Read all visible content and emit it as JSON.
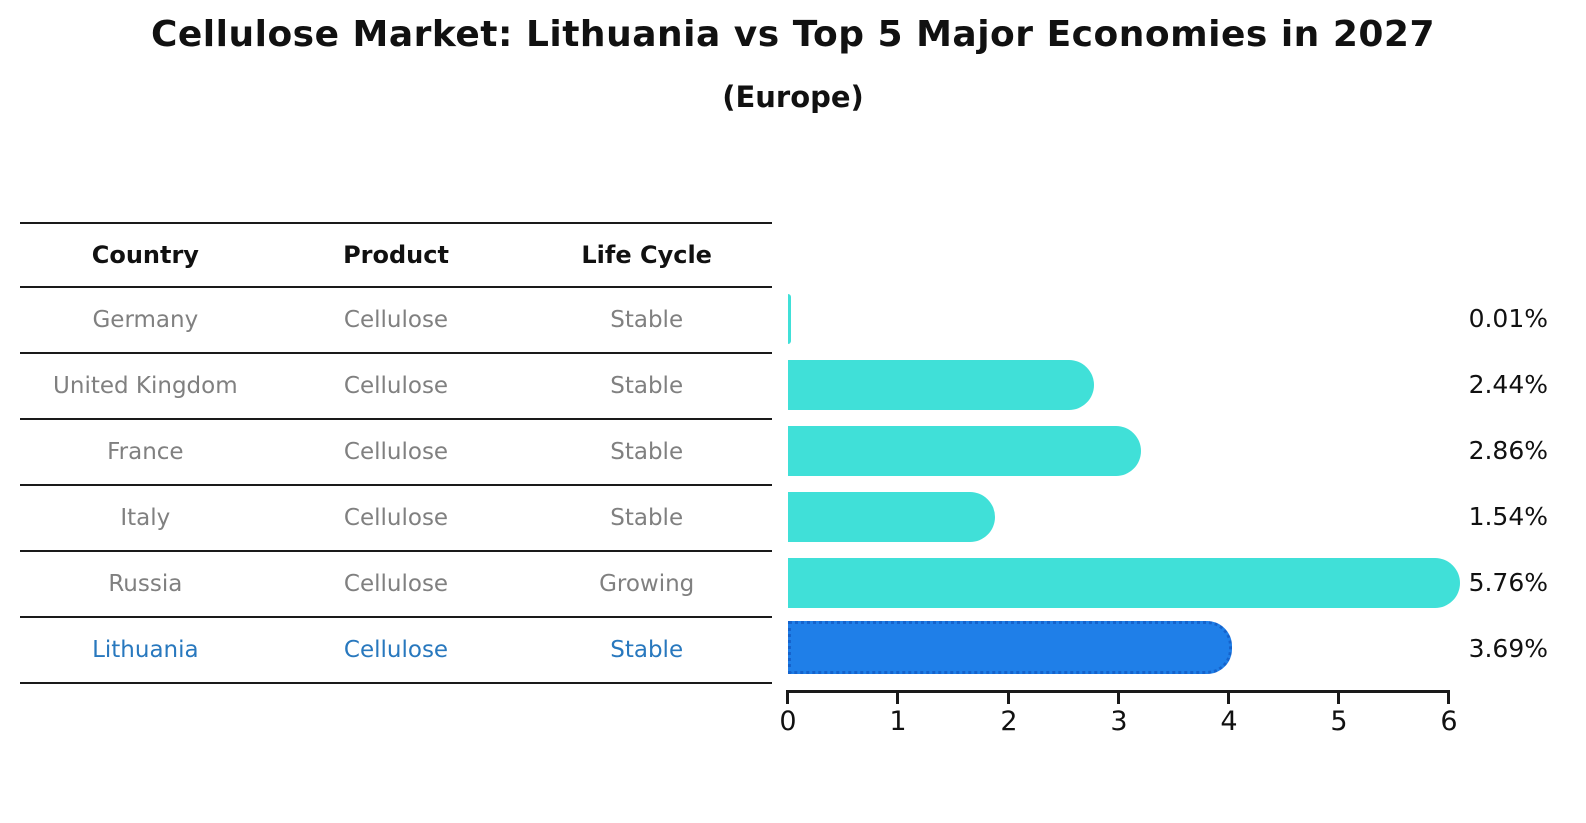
{
  "chart_data": {
    "type": "bar",
    "orientation": "horizontal",
    "title": "Cellulose Market: Lithuania vs Top 5 Major Economies in 2027",
    "subtitle": "(Europe)",
    "table_headers": [
      "Country",
      "Product",
      "Life Cycle"
    ],
    "rows": [
      {
        "country": "Germany",
        "product": "Cellulose",
        "life_cycle": "Stable",
        "value": 0.01,
        "label": "0.01%",
        "highlight": false
      },
      {
        "country": "United Kingdom",
        "product": "Cellulose",
        "life_cycle": "Stable",
        "value": 2.44,
        "label": "2.44%",
        "highlight": false
      },
      {
        "country": "France",
        "product": "Cellulose",
        "life_cycle": "Stable",
        "value": 2.86,
        "label": "2.86%",
        "highlight": false
      },
      {
        "country": "Italy",
        "product": "Cellulose",
        "life_cycle": "Stable",
        "value": 1.54,
        "label": "1.54%",
        "highlight": false
      },
      {
        "country": "Russia",
        "product": "Cellulose",
        "life_cycle": "Growing",
        "value": 5.76,
        "label": "5.76%",
        "highlight": false
      },
      {
        "country": "Lithuania",
        "product": "Cellulose",
        "life_cycle": "Stable",
        "value": 3.69,
        "label": "3.69%",
        "highlight": true
      }
    ],
    "xlim": [
      0,
      6
    ],
    "x_ticks": [
      "0",
      "1",
      "2",
      "3",
      "4",
      "5",
      "6"
    ],
    "grid": false,
    "legend": false,
    "colors": {
      "bar": "#40e0d8",
      "highlight_bar": "#1f7fe8",
      "highlight_bar_border": "#1563cc",
      "highlight_text": "#2878be",
      "table_text": "#808080",
      "header_text": "#111111",
      "axis_line": "#1a1a1a"
    }
  }
}
